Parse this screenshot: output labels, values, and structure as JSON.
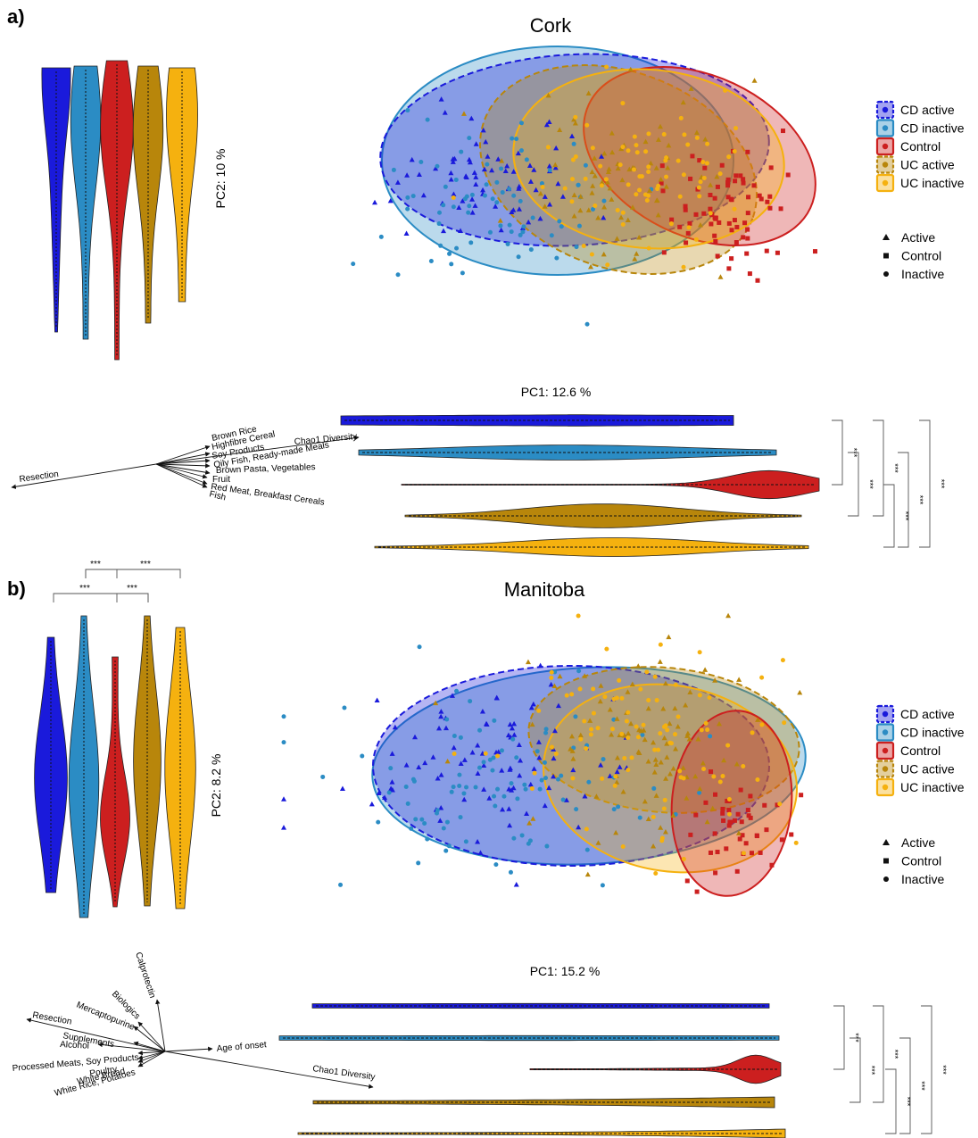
{
  "colors": {
    "cd_active": "#1a1adb",
    "cd_inactive": "#2b8cc4",
    "control": "#cc1f1f",
    "uc_active": "#b8860b",
    "uc_inactive": "#f5b10f"
  },
  "legend": {
    "groups": [
      {
        "key": "cd_active",
        "label": "CD active"
      },
      {
        "key": "cd_inactive",
        "label": "CD inactive"
      },
      {
        "key": "control",
        "label": "Control"
      },
      {
        "key": "uc_active",
        "label": "UC active"
      },
      {
        "key": "uc_inactive",
        "label": "UC inactive"
      }
    ],
    "shapes": [
      {
        "shape": "triangle",
        "label": "Active"
      },
      {
        "shape": "square",
        "label": "Control"
      },
      {
        "shape": "circle",
        "label": "Inactive"
      }
    ]
  },
  "sig_label": "***",
  "panels": [
    {
      "tag": "a)",
      "title": "Cork",
      "pc1_label": "PC1: 12.6 %",
      "pc2_label": "PC2: 10 %",
      "biplot_labels": [
        "Resection",
        "Brown Rice",
        "Highfibre Cereal",
        "Soy Products",
        "Oily Fish, Ready-made Meals",
        "Brown Pasta, Vegetables",
        "Fruit",
        "Red Meat,  Breakfast Cereals",
        "Fish",
        "Chao1 Diversity"
      ],
      "sig_brackets": 6,
      "top_brackets": 0
    },
    {
      "tag": "b)",
      "title": "Manitoba",
      "pc1_label": "PC1: 15.2 %",
      "pc2_label": "PC2: 8.2 %",
      "biplot_labels": [
        "Calprotectin",
        "Biologics",
        "Mercaptopurine",
        "Resection",
        "Supplements",
        "Alcohol",
        "Age of onset",
        "Processed Meats, Soy Products",
        "Poultry",
        "White Bread",
        "White Rice, Potatoes",
        "Chao1 Diversity"
      ],
      "sig_brackets": 6,
      "top_brackets": 4
    }
  ],
  "chart_data": [
    {
      "type": "scatter",
      "title": "Cork",
      "xlabel": "PC1: 12.6 %",
      "ylabel": "PC2: 10 %",
      "series": [
        {
          "name": "CD active",
          "shape": "triangle"
        },
        {
          "name": "CD inactive",
          "shape": "circle"
        },
        {
          "name": "Control",
          "shape": "square"
        },
        {
          "name": "UC active",
          "shape": "triangle"
        },
        {
          "name": "UC inactive",
          "shape": "circle"
        }
      ],
      "legend_position": "right"
    },
    {
      "type": "scatter",
      "title": "Manitoba",
      "xlabel": "PC1: 15.2 %",
      "ylabel": "PC2: 8.2 %",
      "series": [
        {
          "name": "CD active",
          "shape": "triangle"
        },
        {
          "name": "CD inactive",
          "shape": "circle"
        },
        {
          "name": "Control",
          "shape": "square"
        },
        {
          "name": "UC active",
          "shape": "triangle"
        },
        {
          "name": "UC inactive",
          "shape": "circle"
        }
      ],
      "legend_position": "right"
    }
  ]
}
